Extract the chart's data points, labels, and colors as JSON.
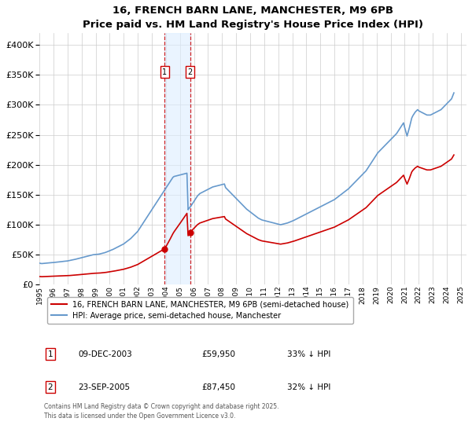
{
  "title": "16, FRENCH BARN LANE, MANCHESTER, M9 6PB",
  "subtitle": "Price paid vs. HM Land Registry's House Price Index (HPI)",
  "hpi_color": "#6699cc",
  "price_color": "#cc0000",
  "background_color": "#ffffff",
  "grid_color": "#cccccc",
  "vline_color": "#cc0000",
  "vband_color": "#ddeeff",
  "ylim": [
    0,
    420000
  ],
  "yticks": [
    0,
    50000,
    100000,
    150000,
    200000,
    250000,
    300000,
    350000,
    400000
  ],
  "xlabel_years": [
    "1995",
    "1996",
    "1997",
    "1998",
    "1999",
    "2000",
    "2001",
    "2002",
    "2003",
    "2004",
    "2005",
    "2006",
    "2007",
    "2008",
    "2009",
    "2010",
    "2011",
    "2012",
    "2013",
    "2014",
    "2015",
    "2016",
    "2017",
    "2018",
    "2019",
    "2020",
    "2021",
    "2022",
    "2023",
    "2024",
    "2025"
  ],
  "transaction1": {
    "date_num": 2003.92,
    "price": 59950,
    "label": "1"
  },
  "transaction2": {
    "date_num": 2005.72,
    "price": 87450,
    "label": "2"
  },
  "legend_price_label": "16, FRENCH BARN LANE, MANCHESTER, M9 6PB (semi-detached house)",
  "legend_hpi_label": "HPI: Average price, semi-detached house, Manchester",
  "table_rows": [
    {
      "num": "1",
      "date": "09-DEC-2003",
      "price": "£59,950",
      "change": "33% ↓ HPI"
    },
    {
      "num": "2",
      "date": "23-SEP-2005",
      "price": "£87,450",
      "change": "32% ↓ HPI"
    }
  ],
  "footer": "Contains HM Land Registry data © Crown copyright and database right 2025.\nThis data is licensed under the Open Government Licence v3.0."
}
